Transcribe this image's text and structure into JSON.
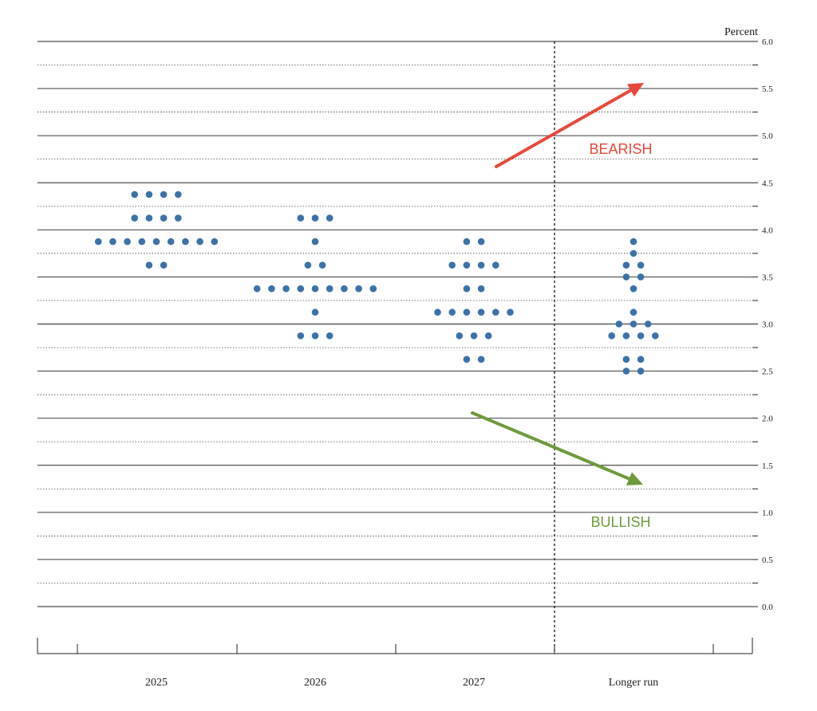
{
  "chart_data": {
    "type": "scatter",
    "unit_label": "Percent",
    "ylim": [
      0.0,
      6.0
    ],
    "yticks": [
      {
        "value": 6.0,
        "label": "6.0"
      },
      {
        "value": 5.5,
        "label": "5.5"
      },
      {
        "value": 5.0,
        "label": "5.0"
      },
      {
        "value": 4.5,
        "label": "4.5"
      },
      {
        "value": 4.0,
        "label": "4.0"
      },
      {
        "value": 3.5,
        "label": "3.5"
      },
      {
        "value": 3.0,
        "label": "3.0"
      },
      {
        "value": 2.5,
        "label": "2.5"
      },
      {
        "value": 2.0,
        "label": "2.0"
      },
      {
        "value": 1.5,
        "label": "1.5"
      },
      {
        "value": 1.0,
        "label": "1.0"
      },
      {
        "value": 0.5,
        "label": "0.5"
      },
      {
        "value": 0.0,
        "label": "0.0"
      }
    ],
    "grid": true,
    "categories": [
      "2025",
      "2026",
      "2027",
      "Longer run"
    ],
    "dots": [
      {
        "category": "2025",
        "points": [
          {
            "y": 4.375,
            "count": 4
          },
          {
            "y": 4.125,
            "count": 4
          },
          {
            "y": 3.875,
            "count": 9
          },
          {
            "y": 3.625,
            "count": 2
          }
        ]
      },
      {
        "category": "2026",
        "points": [
          {
            "y": 4.125,
            "count": 3
          },
          {
            "y": 3.875,
            "count": 1
          },
          {
            "y": 3.625,
            "count": 2
          },
          {
            "y": 3.375,
            "count": 9
          },
          {
            "y": 3.125,
            "count": 1
          },
          {
            "y": 2.875,
            "count": 3
          }
        ]
      },
      {
        "category": "2027",
        "points": [
          {
            "y": 3.875,
            "count": 2
          },
          {
            "y": 3.625,
            "count": 4
          },
          {
            "y": 3.375,
            "count": 2
          },
          {
            "y": 3.125,
            "count": 6
          },
          {
            "y": 2.875,
            "count": 3
          },
          {
            "y": 2.625,
            "count": 2
          }
        ]
      },
      {
        "category": "Longer run",
        "points": [
          {
            "y": 3.875,
            "count": 1
          },
          {
            "y": 3.75,
            "count": 1
          },
          {
            "y": 3.625,
            "count": 2
          },
          {
            "y": 3.5,
            "count": 2
          },
          {
            "y": 3.375,
            "count": 1
          },
          {
            "y": 3.125,
            "count": 1
          },
          {
            "y": 3.0,
            "count": 3
          },
          {
            "y": 2.875,
            "count": 4
          },
          {
            "y": 2.625,
            "count": 2
          },
          {
            "y": 2.5,
            "count": 2
          }
        ]
      }
    ],
    "annotations": [
      {
        "text": "BEARISH",
        "color": "#e8483a"
      },
      {
        "text": "BULLISH",
        "color": "#6e9a3c"
      }
    ],
    "colors": {
      "dot": "#3b72a8",
      "bearish": "#e8483a",
      "bullish": "#6e9a3c",
      "grid": "#222222"
    }
  }
}
